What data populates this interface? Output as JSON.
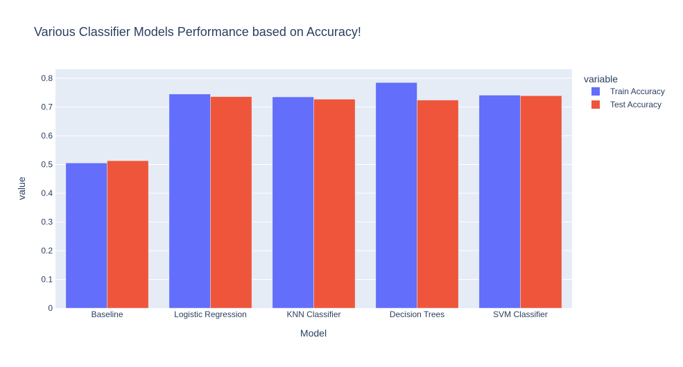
{
  "chart_data": {
    "type": "bar",
    "title": "Various Classifier Models Performance based on Accuracy!",
    "xlabel": "Model",
    "ylabel": "value",
    "categories": [
      "Baseline",
      "Logistic Regression",
      "KNN Classifier",
      "Decision Trees",
      "SVM Classifier"
    ],
    "series": [
      {
        "name": "Train Accuracy",
        "color": "#636efa",
        "values": [
          0.505,
          0.745,
          0.735,
          0.785,
          0.741
        ]
      },
      {
        "name": "Test Accuracy",
        "color": "#ef553b",
        "values": [
          0.513,
          0.736,
          0.727,
          0.724,
          0.739
        ]
      }
    ],
    "ylim": [
      0,
      0.8
    ],
    "yticks": [
      "0",
      "0.1",
      "0.2",
      "0.3",
      "0.4",
      "0.5",
      "0.6",
      "0.7",
      "0.8"
    ],
    "grid": true,
    "barmode": "group",
    "legend": {
      "title": "variable",
      "position": "right"
    },
    "colors": {
      "plot_background": "#e5ecf6",
      "grid": "#ffffff",
      "text": "#2a3f5f"
    }
  }
}
